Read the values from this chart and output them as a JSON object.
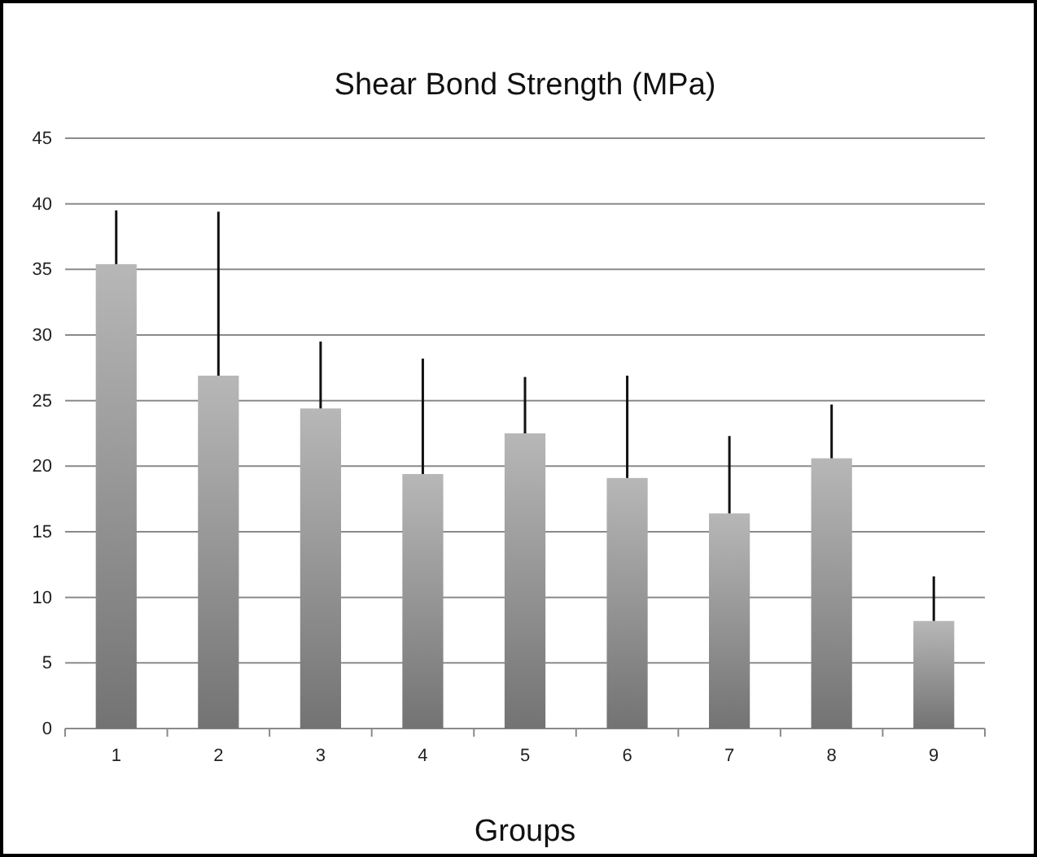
{
  "chart_data": {
    "type": "bar",
    "title": "Shear Bond Strength (MPa)",
    "xlabel": "Groups",
    "categories": [
      "1",
      "2",
      "3",
      "4",
      "5",
      "6",
      "7",
      "8",
      "9"
    ],
    "values": [
      35.4,
      26.9,
      24.4,
      19.4,
      22.5,
      19.1,
      16.4,
      20.6,
      8.2
    ],
    "errors": [
      [
        35.4,
        39.5
      ],
      [
        26.9,
        39.4
      ],
      [
        24.4,
        29.5
      ],
      [
        19.4,
        28.2
      ],
      [
        22.5,
        26.8
      ],
      [
        19.1,
        26.9
      ],
      [
        16.4,
        22.3
      ],
      [
        20.6,
        24.7
      ],
      [
        8.2,
        11.6
      ]
    ],
    "color": "#949494",
    "ylim": [
      0,
      45
    ],
    "yticks": [
      0,
      5,
      10,
      15,
      20,
      25,
      30,
      35,
      40,
      45
    ],
    "grid": "y"
  }
}
